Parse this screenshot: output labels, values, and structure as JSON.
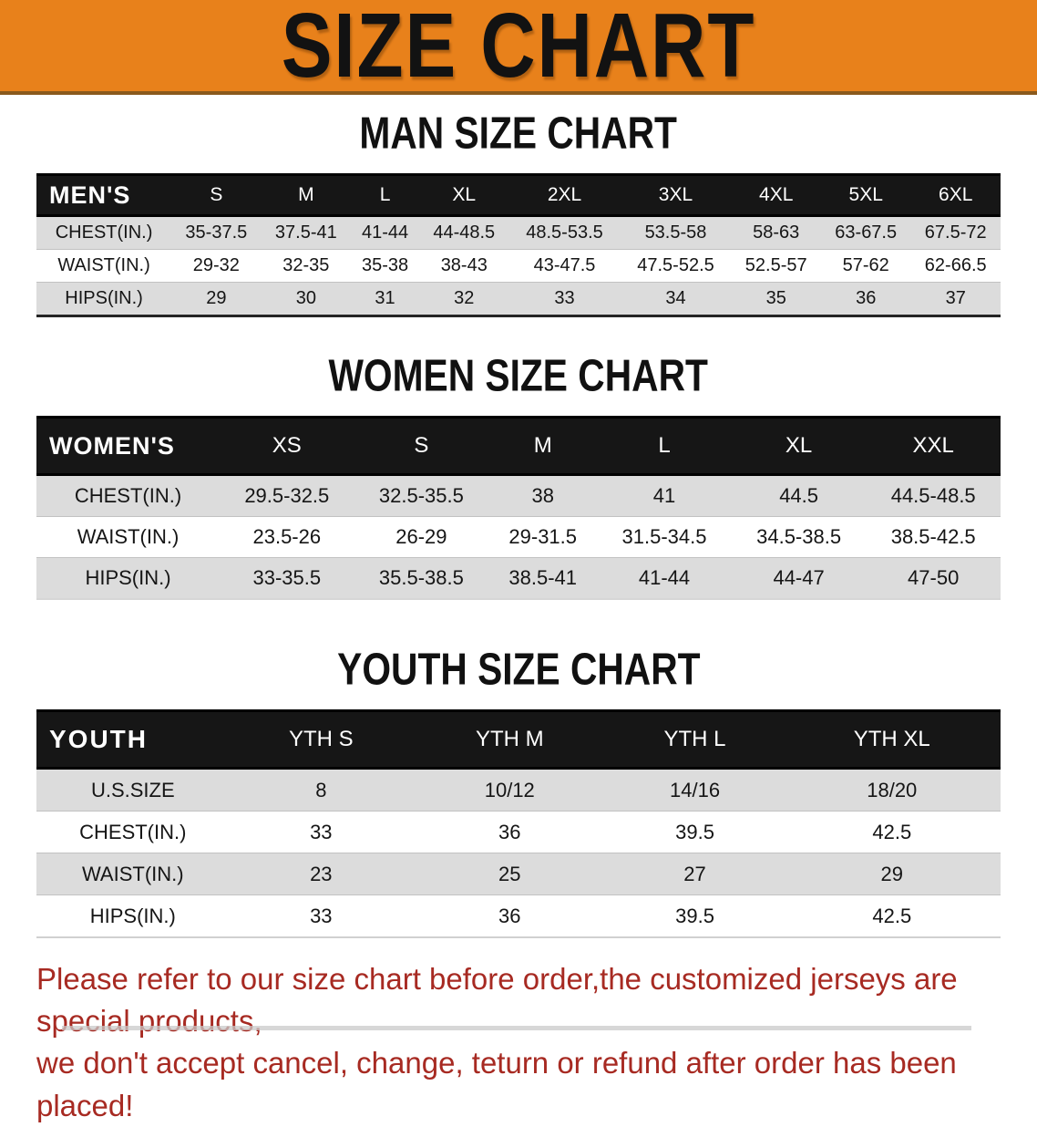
{
  "banner": {
    "title": "SIZE CHART",
    "bg_color": "#E8811B"
  },
  "men": {
    "heading": "MAN SIZE CHART",
    "header": [
      "MEN'S",
      "S",
      "M",
      "L",
      "XL",
      "2XL",
      "3XL",
      "4XL",
      "5XL",
      "6XL"
    ],
    "rows": [
      [
        "CHEST(IN.)",
        "35-37.5",
        "37.5-41",
        "41-44",
        "44-48.5",
        "48.5-53.5",
        "53.5-58",
        "58-63",
        "63-67.5",
        "67.5-72"
      ],
      [
        "WAIST(IN.)",
        "29-32",
        "32-35",
        "35-38",
        "38-43",
        "43-47.5",
        "47.5-52.5",
        "52.5-57",
        "57-62",
        "62-66.5"
      ],
      [
        "HIPS(IN.)",
        "29",
        "30",
        "31",
        "32",
        "33",
        "34",
        "35",
        "36",
        "37"
      ]
    ]
  },
  "women": {
    "heading": "WOMEN SIZE CHART",
    "header": [
      "WOMEN'S",
      "XS",
      "S",
      "M",
      "L",
      "XL",
      "XXL"
    ],
    "rows": [
      [
        "CHEST(IN.)",
        "29.5-32.5",
        "32.5-35.5",
        "38",
        "41",
        "44.5",
        "44.5-48.5"
      ],
      [
        "WAIST(IN.)",
        "23.5-26",
        "26-29",
        "29-31.5",
        "31.5-34.5",
        "34.5-38.5",
        "38.5-42.5"
      ],
      [
        "HIPS(IN.)",
        "33-35.5",
        "35.5-38.5",
        "38.5-41",
        "41-44",
        "44-47",
        "47-50"
      ]
    ]
  },
  "youth": {
    "heading": "YOUTH SIZE CHART",
    "header": [
      "YOUTH",
      "YTH S",
      "YTH M",
      "YTH L",
      "YTH XL"
    ],
    "rows": [
      [
        "U.S.SIZE",
        "8",
        "10/12",
        "14/16",
        "18/20"
      ],
      [
        "CHEST(IN.)",
        "33",
        "36",
        "39.5",
        "42.5"
      ],
      [
        "WAIST(IN.)",
        "23",
        "25",
        "27",
        "29"
      ],
      [
        "HIPS(IN.)",
        "33",
        "36",
        "39.5",
        "42.5"
      ]
    ]
  },
  "disclaimer": {
    "line1": "Please refer to our size chart before order,the customized jerseys are special products,",
    "line2": "we don't accept cancel, change, teturn or refund after order has been placed!"
  },
  "colors": {
    "banner_bg": "#E8811B",
    "table_header_bg": "#161616",
    "stripe_gray": "#DCDCDC",
    "note_red": "#A72A22"
  }
}
